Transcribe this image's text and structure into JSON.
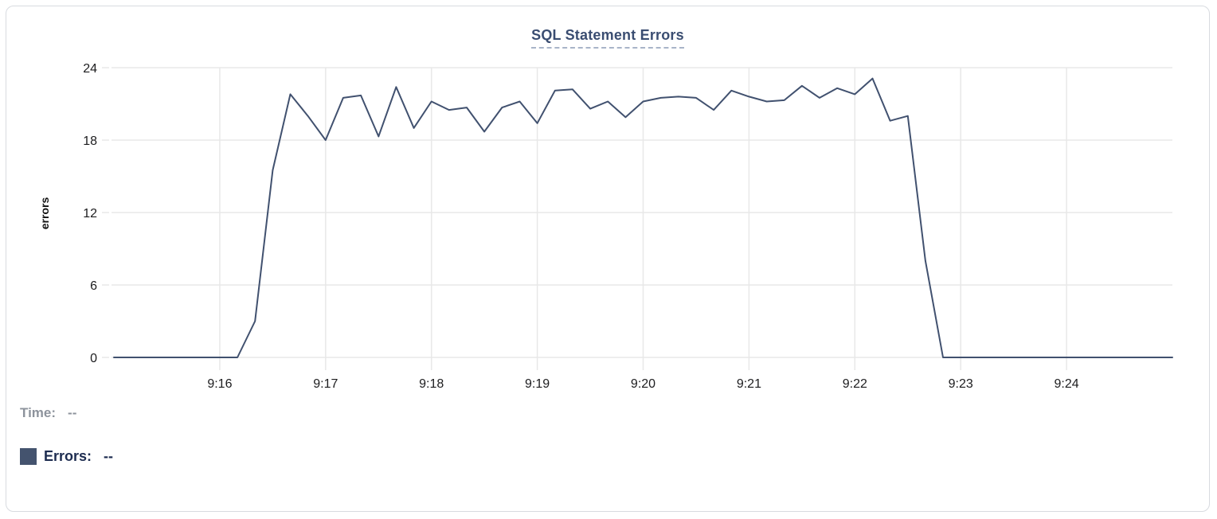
{
  "chart_data": {
    "type": "line",
    "title": "SQL Statement Errors",
    "xlabel": "",
    "ylabel": "errors",
    "ylim": [
      0,
      24
    ],
    "yticks": [
      0,
      6,
      12,
      18,
      24
    ],
    "xticks": [
      "9:16",
      "9:17",
      "9:18",
      "9:19",
      "9:20",
      "9:21",
      "9:22",
      "9:23",
      "9:24"
    ],
    "x_start": "9:15:00",
    "x_end": "9:25:00",
    "interval_seconds": 10,
    "grid": true,
    "legend_position": "bottom-left",
    "series": [
      {
        "name": "Errors",
        "color": "#41516f",
        "values": [
          0,
          0,
          0,
          0,
          0,
          0,
          0,
          0,
          3,
          15.5,
          21.8,
          20,
          18,
          21.5,
          21.7,
          18.3,
          22.4,
          19,
          21.2,
          20.5,
          20.7,
          18.7,
          20.7,
          21.2,
          19.4,
          22.1,
          22.2,
          20.6,
          21.2,
          19.9,
          21.2,
          21.5,
          21.6,
          21.5,
          20.5,
          22.1,
          21.6,
          21.2,
          21.3,
          22.5,
          21.5,
          22.3,
          21.8,
          23.1,
          19.6,
          20,
          8,
          0,
          0,
          0,
          0,
          0,
          0,
          0,
          0,
          0,
          0,
          0,
          0,
          0,
          0
        ]
      }
    ]
  },
  "footer": {
    "time_label": "Time:",
    "time_value": "--",
    "errors_label": "Errors:",
    "errors_value": "--"
  },
  "colors": {
    "line": "#41516f",
    "swatch": "#44536e",
    "grid": "#e8e8e8",
    "title": "#3a4d71",
    "time_text": "#8d939c",
    "errors_text": "#1d2c50"
  }
}
